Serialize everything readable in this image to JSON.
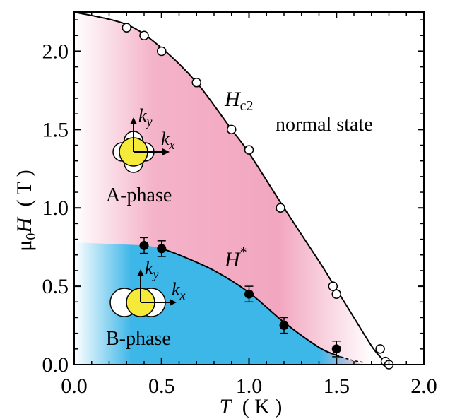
{
  "chart_data": {
    "type": "scatter",
    "title": "",
    "xlabel": {
      "symbol": "T",
      "unit": "( K )"
    },
    "ylabel": {
      "prefix": "μ",
      "sub": "0",
      "symbol": "H",
      "unit": "( T )"
    },
    "xlim": [
      0.0,
      2.0
    ],
    "ylim": [
      0.0,
      2.25
    ],
    "xticks": [
      "0.0",
      "0.5",
      "1.0",
      "1.5",
      "2.0"
    ],
    "yticks": [
      "0.0",
      "0.5",
      "1.0",
      "1.5",
      "2.0"
    ],
    "series": [
      {
        "name": "",
        "marker": "open-circle",
        "x": [
          0.3,
          0.4,
          0.5,
          0.7,
          0.9,
          1.0,
          1.18,
          1.48,
          1.5,
          1.75,
          1.78,
          1.8
        ],
        "y": [
          2.15,
          2.1,
          2.0,
          1.8,
          1.5,
          1.37,
          1.0,
          0.5,
          0.45,
          0.1,
          0.02,
          0.0
        ]
      },
      {
        "name": "",
        "marker": "filled-circle",
        "x": [
          0.4,
          0.5,
          1.0,
          1.2,
          1.5
        ],
        "y": [
          0.76,
          0.74,
          0.45,
          0.25,
          0.1
        ],
        "yerr": [
          0.05,
          0.05,
          0.05,
          0.05,
          0.05
        ]
      }
    ],
    "curves": [
      {
        "name": "Hc2",
        "x": [
          0.0,
          0.3,
          0.5,
          0.7,
          0.9,
          1.0,
          1.2,
          1.4,
          1.5,
          1.6,
          1.7,
          1.75,
          1.8
        ],
        "y": [
          2.25,
          2.17,
          2.02,
          1.8,
          1.5,
          1.35,
          1.0,
          0.66,
          0.48,
          0.3,
          0.12,
          0.05,
          0.0
        ]
      },
      {
        "name": "H*",
        "x": [
          0.0,
          0.2,
          0.4,
          0.5,
          0.6,
          0.8,
          1.0,
          1.2,
          1.4,
          1.5
        ],
        "y": [
          0.78,
          0.77,
          0.76,
          0.74,
          0.7,
          0.6,
          0.46,
          0.27,
          0.11,
          0.06
        ]
      },
      {
        "name": "H*-extrapolation",
        "x": [
          1.5,
          1.55,
          1.6,
          1.65
        ],
        "y": [
          0.06,
          0.04,
          0.025,
          0.015
        ]
      }
    ],
    "annotations": {
      "hc2": {
        "main": "H",
        "sub": "c2"
      },
      "hstar": {
        "main": "H",
        "sup": "*"
      },
      "normal_state": "normal state",
      "a_phase": "A-phase",
      "b_phase": "B-phase",
      "ky": {
        "main": "k",
        "sub": "y"
      },
      "kx": {
        "main": "k",
        "sub": "x"
      }
    },
    "colors": {
      "a_phase": "#f2a9c2",
      "b_phase": "#3db6e8",
      "gap_fill": "#f5e93a",
      "line": "#000000"
    }
  }
}
